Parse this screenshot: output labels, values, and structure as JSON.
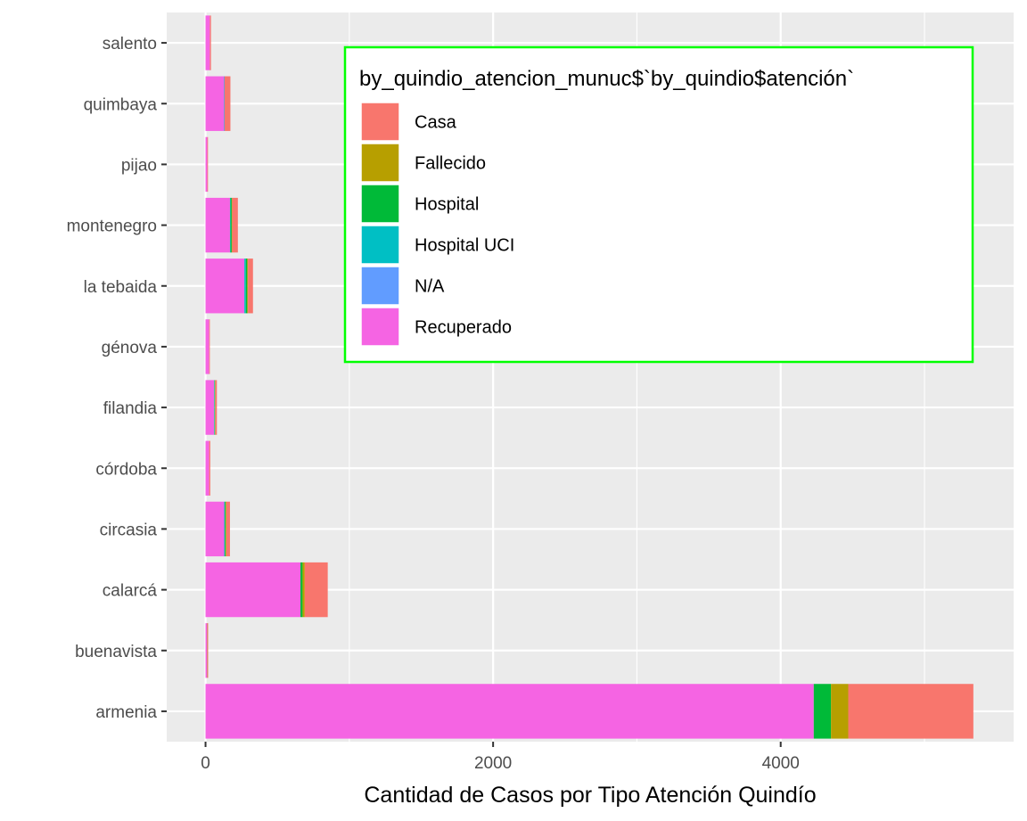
{
  "chart_data": {
    "type": "bar",
    "orientation": "horizontal",
    "stacked": true,
    "title": "",
    "xlabel": "Cantidad de Casos por Tipo Atención Quindío",
    "ylabel": "",
    "xlim": [
      -270,
      5620
    ],
    "x_ticks": [
      0,
      2000,
      4000
    ],
    "x_tick_labels": [
      "0",
      "2000",
      "4000"
    ],
    "grid": true,
    "categories": [
      "armenia",
      "buenavista",
      "calarcá",
      "circasia",
      "córdoba",
      "filandia",
      "génova",
      "la tebaida",
      "montenegro",
      "pijao",
      "quimbaya",
      "salento"
    ],
    "series": [
      {
        "name": "Recuperado",
        "values": [
          4230,
          12,
          660,
          130,
          25,
          60,
          25,
          270,
          170,
          12,
          130,
          30
        ]
      },
      {
        "name": "N/A",
        "values": [
          0,
          0,
          0,
          0,
          0,
          0,
          0,
          0,
          0,
          0,
          0,
          0
        ]
      },
      {
        "name": "Hospital UCI",
        "values": [
          0,
          0,
          0,
          5,
          0,
          3,
          0,
          10,
          4,
          0,
          3,
          0
        ]
      },
      {
        "name": "Hospital",
        "values": [
          120,
          0,
          15,
          5,
          0,
          3,
          0,
          10,
          8,
          0,
          0,
          0
        ]
      },
      {
        "name": "Fallecido",
        "values": [
          120,
          3,
          15,
          5,
          0,
          3,
          0,
          5,
          3,
          0,
          0,
          0
        ]
      },
      {
        "name": "Casa",
        "values": [
          870,
          3,
          160,
          25,
          8,
          10,
          5,
          35,
          40,
          5,
          40,
          8
        ]
      }
    ],
    "legend": {
      "title": "by_quindio_atencion_munuc$`by_quindio$atención`",
      "placement": "top-right inside",
      "border_color": "#00ff00",
      "entries": [
        "Casa",
        "Fallecido",
        "Hospital",
        "Hospital UCI",
        "N/A",
        "Recuperado"
      ]
    },
    "colors": {
      "Casa": "#F8766D",
      "Fallecido": "#B79F00",
      "Hospital": "#00BA38",
      "Hospital UCI": "#00BFC4",
      "N/A": "#619CFF",
      "Recuperado": "#F564E3"
    },
    "panel_background": "#EBEBEB",
    "grid_color": "#FFFFFF"
  }
}
